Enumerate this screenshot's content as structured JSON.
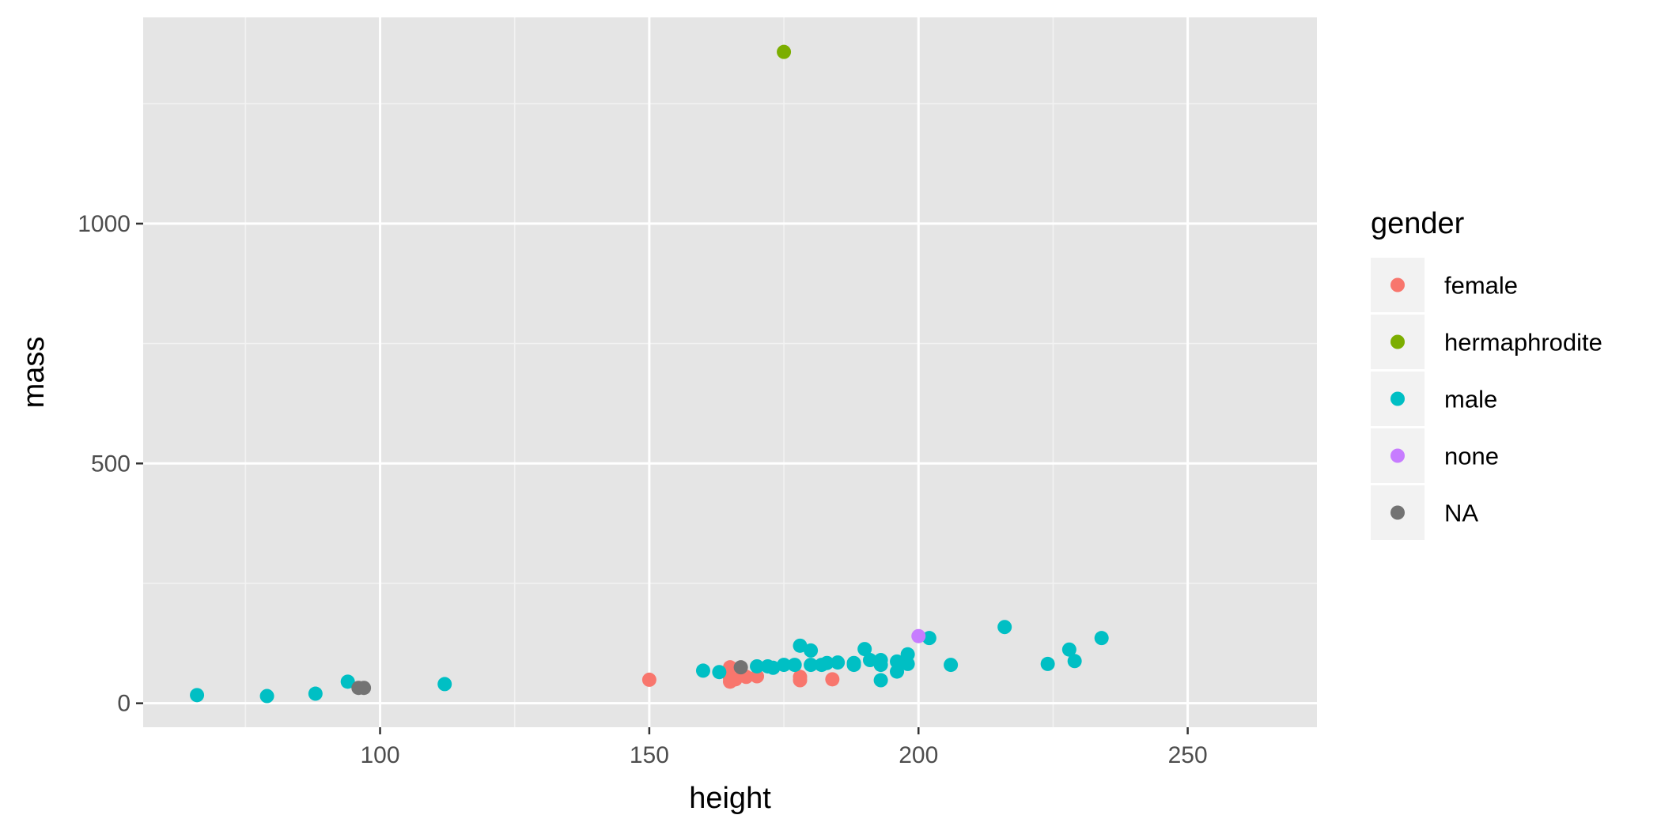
{
  "chart_data": {
    "type": "scatter",
    "title": "",
    "xlabel": "height",
    "ylabel": "mass",
    "xlim": [
      56,
      274
    ],
    "ylim": [
      -50,
      1430
    ],
    "x_ticks": [
      100,
      150,
      200,
      250
    ],
    "y_ticks": [
      0,
      500,
      1000
    ],
    "grid": true,
    "legend": {
      "title": "gender",
      "placement": "right"
    },
    "series": [
      {
        "name": "female",
        "color": "#F8766D",
        "points": [
          [
            150,
            49
          ],
          [
            165,
            75
          ],
          [
            165,
            45
          ],
          [
            166,
            50
          ],
          [
            168,
            55
          ],
          [
            170,
            56.2
          ],
          [
            178,
            55
          ],
          [
            178,
            48
          ],
          [
            184,
            50
          ],
          [
            165,
            52
          ]
        ]
      },
      {
        "name": "hermaphrodite",
        "color": "#7CAE00",
        "points": [
          [
            175,
            1358
          ]
        ]
      },
      {
        "name": "male",
        "color": "#00BFC4",
        "points": [
          [
            66,
            17
          ],
          [
            79,
            15
          ],
          [
            88,
            20
          ],
          [
            94,
            45
          ],
          [
            112,
            40
          ],
          [
            160,
            68
          ],
          [
            163,
            65
          ],
          [
            170,
            77
          ],
          [
            172,
            77
          ],
          [
            173,
            74
          ],
          [
            175,
            80
          ],
          [
            177,
            80
          ],
          [
            178,
            120
          ],
          [
            180,
            110
          ],
          [
            180,
            80
          ],
          [
            182,
            80
          ],
          [
            183,
            84
          ],
          [
            185,
            85
          ],
          [
            188,
            84
          ],
          [
            188,
            80
          ],
          [
            190,
            113
          ],
          [
            191,
            90
          ],
          [
            193,
            90
          ],
          [
            193,
            80
          ],
          [
            193,
            48
          ],
          [
            196,
            66
          ],
          [
            196,
            87
          ],
          [
            198,
            82
          ],
          [
            198,
            102
          ],
          [
            202,
            136
          ],
          [
            206,
            80
          ],
          [
            216,
            159
          ],
          [
            224,
            82
          ],
          [
            228,
            112
          ],
          [
            229,
            88
          ],
          [
            234,
            136
          ]
        ]
      },
      {
        "name": "none",
        "color": "#C77CFF",
        "points": [
          [
            200,
            140
          ]
        ]
      },
      {
        "name": "NA",
        "color": "#737373",
        "points": [
          [
            96,
            32
          ],
          [
            97,
            32
          ],
          [
            167,
            75
          ]
        ]
      }
    ]
  }
}
